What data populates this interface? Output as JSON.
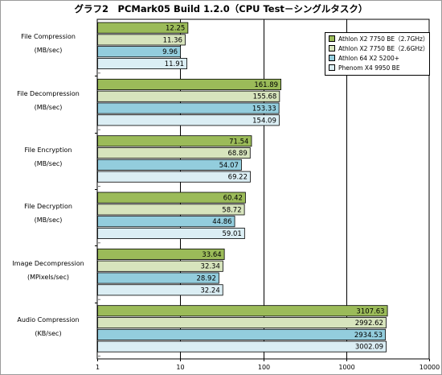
{
  "title": "グラフ2　PCMark05 Build 1.2.0（CPU Test－シングルタスク）",
  "colors": {
    "series": [
      "#9bbb59",
      "#d7e4bd",
      "#93cddd",
      "#dbeef4"
    ],
    "grid": "#000000",
    "bar_border": "#000000"
  },
  "chart_data": {
    "type": "bar",
    "orientation": "horizontal",
    "title": "グラフ2　PCMark05 Build 1.2.0（CPU Test－シングルタスク）",
    "x_scale": "log",
    "xlim": [
      1,
      10000
    ],
    "x_ticks": [
      "1",
      "10",
      "100",
      "1000",
      "10000"
    ],
    "grid": true,
    "legend_position": "top-right",
    "groups": [
      {
        "label": [
          "File Compression",
          "(MB/sec)"
        ],
        "values": [
          "12.25",
          "11.36",
          "9.96",
          "11.91"
        ]
      },
      {
        "label": [
          "File Decompression",
          "(MB/sec)"
        ],
        "values": [
          "161.89",
          "155.68",
          "153.33",
          "154.09"
        ]
      },
      {
        "label": [
          "File Encryption",
          "(MB/sec)"
        ],
        "values": [
          "71.54",
          "68.89",
          "54.07",
          "69.22"
        ]
      },
      {
        "label": [
          "File Decryption",
          "(MB/sec)"
        ],
        "values": [
          "60.42",
          "58.72",
          "44.86",
          "59.01"
        ]
      },
      {
        "label": [
          "Image Decompression",
          "(MPixels/sec)"
        ],
        "values": [
          "33.64",
          "32.34",
          "28.92",
          "32.24"
        ]
      },
      {
        "label": [
          "Audio Compression",
          "(KB/sec)"
        ],
        "values": [
          "3107.63",
          "2992.62",
          "2934.53",
          "3002.09"
        ]
      }
    ],
    "series": [
      {
        "name": "Athlon X2 7750 BE（2.7GHz）"
      },
      {
        "name": "Athlon X2 7750 BE（2.6GHz）"
      },
      {
        "name": "Athlon 64 X2 5200+"
      },
      {
        "name": "Phenom X4 9950 BE"
      }
    ]
  }
}
